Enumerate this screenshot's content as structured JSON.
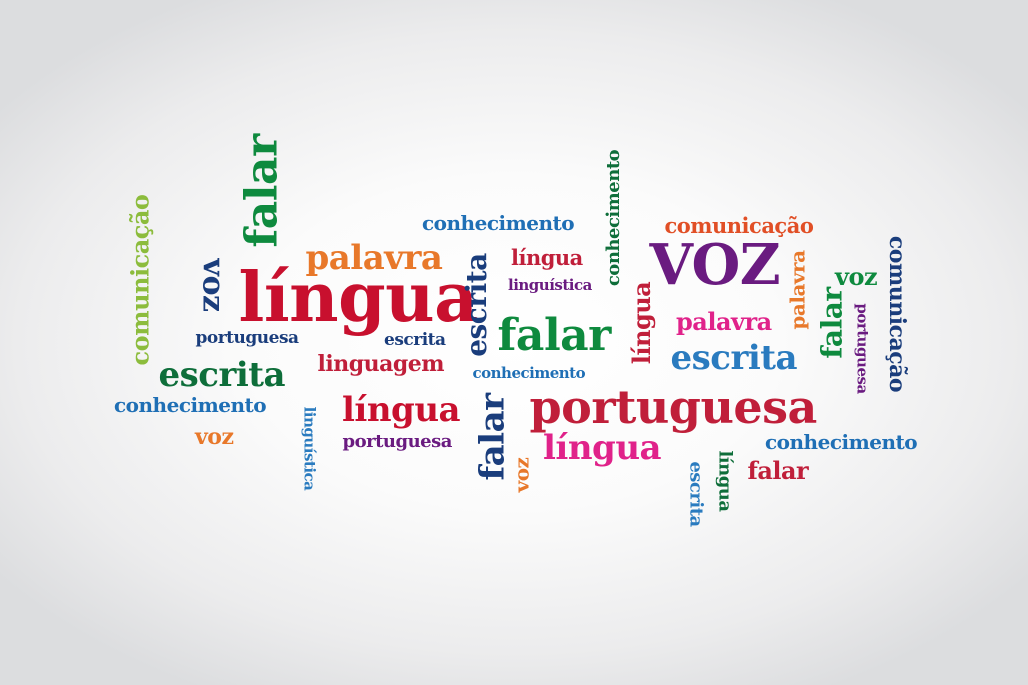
{
  "words": [
    {
      "text": "conhecimento",
      "color": "#1f6fb5"
    },
    {
      "text": "comunicação",
      "color": "#e14f26"
    },
    {
      "text": "palavra",
      "color": "#e8782a"
    },
    {
      "text": "língua",
      "color": "#c01f3a"
    },
    {
      "text": "VOZ",
      "color": "#6a1b80"
    },
    {
      "text": "voz",
      "color": "#0e8a3e"
    },
    {
      "text": "linguística",
      "color": "#6a1b80"
    },
    {
      "text": "língua",
      "color": "#c8102e"
    },
    {
      "text": "portuguesa",
      "color": "#1a3d7c"
    },
    {
      "text": "escrita",
      "color": "#1a3d7c"
    },
    {
      "text": "linguagem",
      "color": "#c01f3a"
    },
    {
      "text": "falar",
      "color": "#0e8a3e"
    },
    {
      "text": "palavra",
      "color": "#e0228a"
    },
    {
      "text": "escrita",
      "color": "#2a7bbf"
    },
    {
      "text": "escrita",
      "color": "#0e6e3a"
    },
    {
      "text": "conhecimento",
      "color": "#1f6fb5"
    },
    {
      "text": "conhecimento",
      "color": "#1f6fb5"
    },
    {
      "text": "língua",
      "color": "#c8102e"
    },
    {
      "text": "portuguesa",
      "color": "#c01f3a"
    },
    {
      "text": "voz",
      "color": "#e8782a"
    },
    {
      "text": "portuguesa",
      "color": "#6a1b80"
    },
    {
      "text": "língua",
      "color": "#e0228a"
    },
    {
      "text": "conhecimento",
      "color": "#1f6fb5"
    },
    {
      "text": "falar",
      "color": "#c01f3a"
    },
    {
      "text": "comunicação",
      "color": "#8cbc3c"
    },
    {
      "text": "voz",
      "color": "#1a3d7c"
    },
    {
      "text": "falar",
      "color": "#0e8a3e"
    },
    {
      "text": "linguística",
      "color": "#2a7bbf"
    },
    {
      "text": "escrita",
      "color": "#1a3d7c"
    },
    {
      "text": "falar",
      "color": "#1a3d7c"
    },
    {
      "text": "voz",
      "color": "#e8782a"
    },
    {
      "text": "conhecimento",
      "color": "#0e6e3a"
    },
    {
      "text": "língua",
      "color": "#c01f3a"
    },
    {
      "text": "palavra",
      "color": "#e8782a"
    },
    {
      "text": "falar",
      "color": "#0e8a3e"
    },
    {
      "text": "comunicação",
      "color": "#1a3d7c"
    },
    {
      "text": "escrita",
      "color": "#2a7bbf"
    },
    {
      "text": "língua",
      "color": "#0e6e3a"
    },
    {
      "text": "portuguesa",
      "color": "#6a1b80"
    }
  ]
}
